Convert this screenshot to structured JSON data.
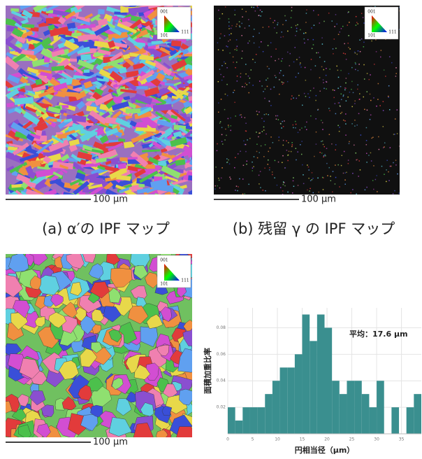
{
  "panels": [
    {
      "scale_bar": "100 μm",
      "inset": [
        "001",
        "101",
        "111"
      ],
      "caption": "(a) α′の IPF マップ"
    },
    {
      "scale_bar": "100 μm",
      "inset": [
        "001",
        "101",
        "111"
      ],
      "caption": "(b) 残留 γ の IPF マップ"
    },
    {
      "scale_bar": "100 μm",
      "inset": [
        "001",
        "101",
        "111"
      ]
    }
  ],
  "chart_data": {
    "type": "histogram",
    "bins": [
      0,
      1.5,
      3,
      4.5,
      6,
      7.5,
      9,
      10.5,
      12,
      13.5,
      15,
      16.5,
      18,
      19.5,
      21,
      22.5,
      24,
      25.5,
      27,
      28.5,
      30,
      31.5,
      33,
      34.5,
      36,
      37.5,
      39
    ],
    "values": [
      0.02,
      0.01,
      0.02,
      0.02,
      0.02,
      0.03,
      0.04,
      0.05,
      0.05,
      0.06,
      0.09,
      0.07,
      0.09,
      0.08,
      0.04,
      0.03,
      0.04,
      0.04,
      0.03,
      0.02,
      0.04,
      0,
      0.02,
      0,
      0.02,
      0.03
    ],
    "color": "#3a8f8f",
    "xlim": [
      0,
      39
    ],
    "ylim": [
      0,
      0.095
    ],
    "xticks": [
      0,
      5,
      10,
      15,
      20,
      25,
      30,
      35
    ],
    "yticks": [
      0.02,
      0.04,
      0.06,
      0.08
    ],
    "grid": true,
    "xlabel": "円相当径（μm）",
    "ylabel": "面積加重比率",
    "annotation": "平均：17.6 μm"
  }
}
